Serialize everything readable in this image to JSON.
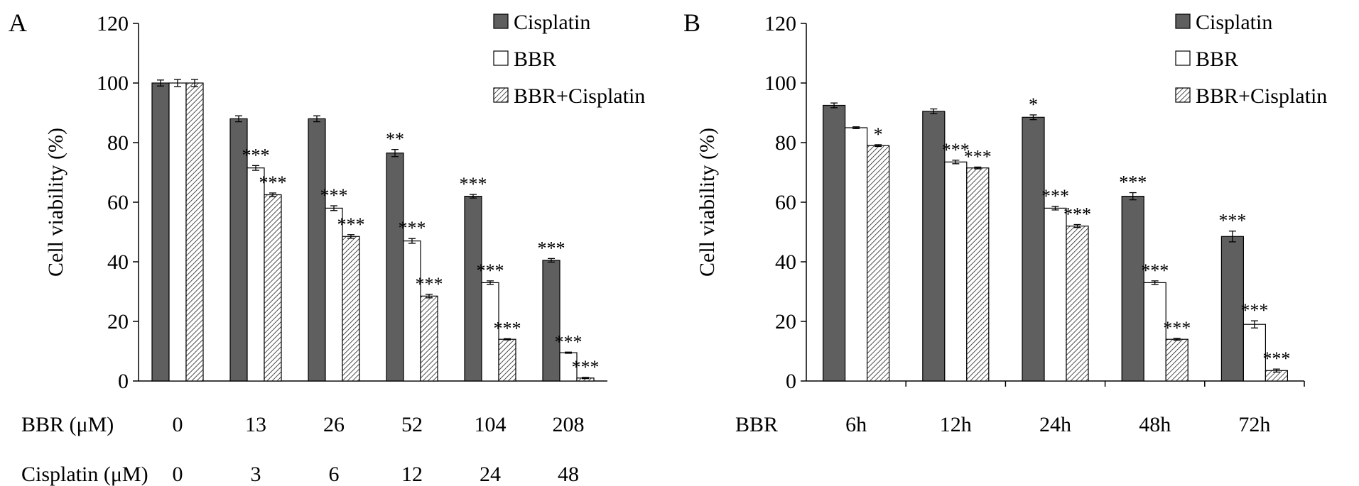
{
  "chart_data": [
    {
      "type": "bar",
      "panel_label": "A",
      "y_label": "Cell viability (%)",
      "x_label_rows": [
        {
          "label": "BBR (μM)",
          "categories": [
            "0",
            "13",
            "26",
            "52",
            "104",
            "208"
          ]
        },
        {
          "label": "Cisplatin (μM)",
          "categories": [
            "0",
            "3",
            "6",
            "12",
            "24",
            "48"
          ]
        }
      ],
      "ylim": [
        0,
        120
      ],
      "yticks": [
        0,
        20,
        40,
        60,
        80,
        100,
        120
      ],
      "legend": "top-right",
      "category_separators": false,
      "series": [
        {
          "name": "Cisplatin",
          "color": "#5f5f5f",
          "hatch": false,
          "values": [
            100,
            88,
            88,
            76.5,
            62,
            40.5
          ],
          "errors": [
            1,
            1,
            1,
            1.2,
            0.6,
            0.6
          ],
          "annotations": [
            null,
            null,
            null,
            "**",
            "***",
            "***"
          ]
        },
        {
          "name": "BBR",
          "color": "#ffffff",
          "hatch": false,
          "values": [
            100,
            71.5,
            58,
            47,
            33,
            9.5
          ],
          "errors": [
            1.2,
            0.8,
            0.8,
            0.8,
            0.6,
            0.2
          ],
          "annotations": [
            null,
            "***",
            "***",
            "***",
            "***",
            "***"
          ]
        },
        {
          "name": "BBR+Cisplatin",
          "color": "#ffffff",
          "hatch": true,
          "values": [
            100,
            62.5,
            48.5,
            28.5,
            14,
            1
          ],
          "errors": [
            1.2,
            0.6,
            0.6,
            0.6,
            0.2,
            0.2
          ],
          "annotations": [
            null,
            "***",
            "***",
            "***",
            "***",
            "***"
          ]
        }
      ]
    },
    {
      "type": "bar",
      "panel_label": "B",
      "y_label": "Cell viability (%)",
      "x_label_rows": [
        {
          "label": "BBR",
          "categories": [
            "6h",
            "12h",
            "24h",
            "48h",
            "72h"
          ]
        }
      ],
      "ylim": [
        0,
        120
      ],
      "yticks": [
        0,
        20,
        40,
        60,
        80,
        100,
        120
      ],
      "legend": "top-right",
      "category_separators": true,
      "series": [
        {
          "name": "Cisplatin",
          "color": "#5f5f5f",
          "hatch": false,
          "values": [
            92.5,
            90.5,
            88.5,
            62,
            48.5
          ],
          "errors": [
            0.8,
            0.8,
            0.8,
            1.2,
            1.8
          ],
          "annotations": [
            null,
            null,
            "*",
            "***",
            "***"
          ]
        },
        {
          "name": "BBR",
          "color": "#ffffff",
          "hatch": false,
          "values": [
            85,
            73.5,
            58,
            33,
            19
          ],
          "errors": [
            0.3,
            0.6,
            0.6,
            0.6,
            1.2
          ],
          "annotations": [
            null,
            "***",
            "***",
            "***",
            "***"
          ]
        },
        {
          "name": "BBR+Cisplatin",
          "color": "#ffffff",
          "hatch": true,
          "values": [
            79,
            71.5,
            52,
            14,
            3.5
          ],
          "errors": [
            0.3,
            0.3,
            0.5,
            0.3,
            0.5
          ],
          "annotations": [
            "*",
            "***",
            "***",
            "***",
            "***"
          ]
        }
      ]
    }
  ]
}
